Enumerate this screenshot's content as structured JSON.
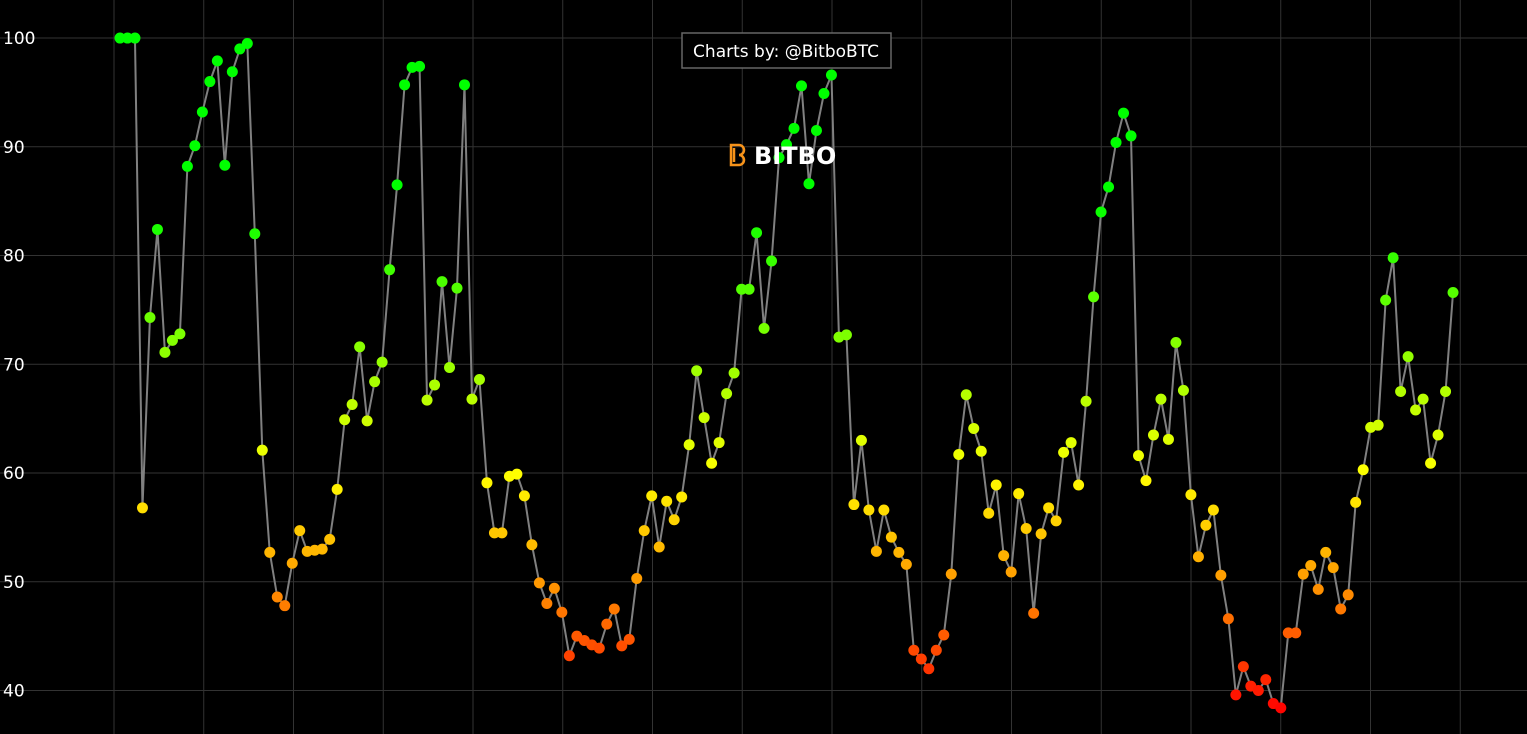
{
  "chart_data": {
    "type": "line",
    "annotation": "Charts by: @BitboBTC",
    "watermark": "BITBO",
    "ylim": [
      36,
      103.5
    ],
    "yticks": [
      40,
      50,
      60,
      70,
      80,
      90,
      100
    ],
    "grid": true,
    "line_color": "#808080",
    "colorscale": [
      [
        38,
        "#ff0000"
      ],
      [
        50,
        "#ff9900"
      ],
      [
        60,
        "#ffff00"
      ],
      [
        85,
        "#00ff00"
      ]
    ],
    "values": [
      100,
      100,
      100,
      56.8,
      74.3,
      82.4,
      71.1,
      72.2,
      72.8,
      88.2,
      90.1,
      93.2,
      96.0,
      97.9,
      88.3,
      96.9,
      99.0,
      99.5,
      82.0,
      62.1,
      52.7,
      48.6,
      47.8,
      51.7,
      54.7,
      52.8,
      52.9,
      53.0,
      53.9,
      58.5,
      64.9,
      66.3,
      71.6,
      64.8,
      68.4,
      70.2,
      78.7,
      86.5,
      95.7,
      97.3,
      97.4,
      66.7,
      68.1,
      77.6,
      69.7,
      77.0,
      95.7,
      66.8,
      68.6,
      59.1,
      54.5,
      54.5,
      59.7,
      59.9,
      57.9,
      53.4,
      49.9,
      48.0,
      49.4,
      47.2,
      43.2,
      45.0,
      44.6,
      44.2,
      43.9,
      46.1,
      47.5,
      44.1,
      44.7,
      50.3,
      54.7,
      57.9,
      53.2,
      57.4,
      55.7,
      57.8,
      62.6,
      69.4,
      65.1,
      60.9,
      62.8,
      67.3,
      69.2,
      76.9,
      76.9,
      82.1,
      73.3,
      79.5,
      89.0,
      90.2,
      91.7,
      95.6,
      86.6,
      91.5,
      94.9,
      96.6,
      72.5,
      72.7,
      57.1,
      63.0,
      56.6,
      52.8,
      56.6,
      54.1,
      52.7,
      51.6,
      43.7,
      42.9,
      42.0,
      43.7,
      45.1,
      50.7,
      61.7,
      67.2,
      64.1,
      62.0,
      56.3,
      58.9,
      52.4,
      50.9,
      58.1,
      54.9,
      47.1,
      54.4,
      56.8,
      55.6,
      61.9,
      62.8,
      58.9,
      66.6,
      76.2,
      84.0,
      86.3,
      90.4,
      93.1,
      91.0,
      61.6,
      59.3,
      63.5,
      66.8,
      63.1,
      72.0,
      67.6,
      58.0,
      52.3,
      55.2,
      56.6,
      50.6,
      46.6,
      39.6,
      42.2,
      40.4,
      40.0,
      41.0,
      38.8,
      38.4,
      45.3,
      45.3,
      50.7,
      51.5,
      49.3,
      52.7,
      51.3,
      47.5,
      48.8,
      57.3,
      60.3,
      64.2,
      64.4,
      75.9,
      79.8,
      67.5,
      70.7,
      65.8,
      66.8,
      60.9,
      63.5,
      67.5,
      76.6
    ]
  }
}
